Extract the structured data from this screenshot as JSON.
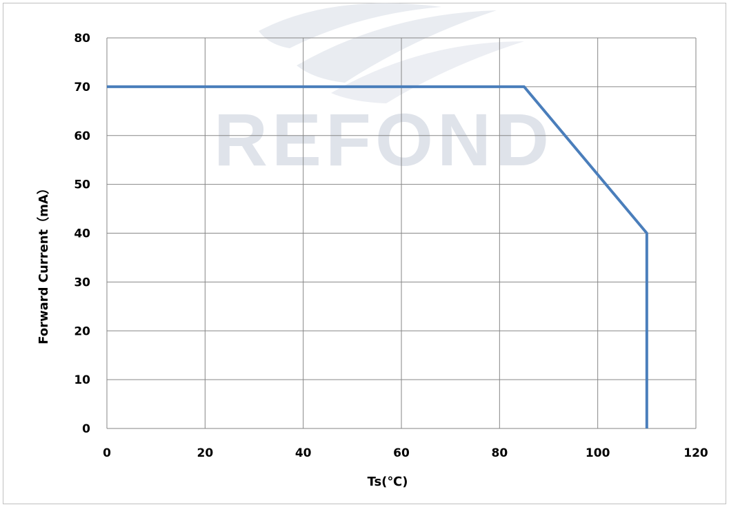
{
  "watermark_text": "REFOND",
  "chart_data": {
    "type": "line",
    "title": "",
    "xlabel": "Ts(℃)",
    "ylabel": "Forward Current（mA）",
    "xlim": [
      0,
      120
    ],
    "ylim": [
      0,
      80
    ],
    "x_ticks": [
      "0",
      "20",
      "40",
      "60",
      "80",
      "100",
      "120"
    ],
    "y_ticks": [
      "0",
      "10",
      "20",
      "30",
      "40",
      "50",
      "60",
      "70",
      "80"
    ],
    "grid": true,
    "legend": "none",
    "series": [
      {
        "color": "#4a7ebb",
        "points": [
          [
            0,
            70
          ],
          [
            85,
            70
          ],
          [
            110,
            40
          ],
          [
            110,
            0
          ]
        ]
      }
    ]
  }
}
